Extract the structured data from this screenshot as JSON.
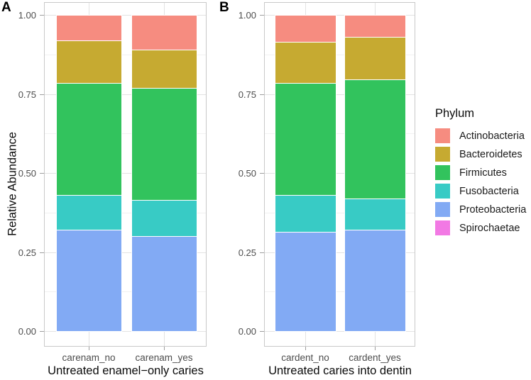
{
  "figure": {
    "background": "#ffffff",
    "axis_text_color": "#4d4d4d",
    "panel_border_color": "#c9c9c9",
    "grid_major_color": "#e3e3e3",
    "grid_minor_color": "#f1f1f1"
  },
  "chart_data": {
    "type": "bar",
    "stacked": true,
    "ylabel": "Relative Abundance",
    "ylim": [
      0,
      1
    ],
    "y_ticks": [
      0,
      0.25,
      0.5,
      0.75,
      1.0
    ],
    "y_tick_labels": [
      "0.00",
      "0.25",
      "0.50",
      "0.75",
      "1.00"
    ],
    "y_minor_ticks": [
      0.125,
      0.375,
      0.625,
      0.875
    ],
    "grid": true,
    "legend_position": "right",
    "legend_title": "Phylum",
    "legend_items": [
      {
        "label": "Actinobacteria",
        "color": "#f68c80"
      },
      {
        "label": "Bacteroidetes",
        "color": "#c6aa31"
      },
      {
        "label": "Firmicutes",
        "color": "#32c35d"
      },
      {
        "label": "Fusobacteria",
        "color": "#38cbc5"
      },
      {
        "label": "Proteobacteria",
        "color": "#82aaf4"
      },
      {
        "label": "Spirochaetae",
        "color": "#f279e4"
      }
    ],
    "stack_order_top_to_bottom": [
      "Actinobacteria",
      "Bacteroidetes",
      "Firmicutes",
      "Fusobacteria",
      "Proteobacteria",
      "Spirochaetae"
    ],
    "panels": [
      {
        "label": "A",
        "xlabel": "Untreated enamel−only caries",
        "categories": [
          "carenam_no",
          "carenam_yes"
        ],
        "series": [
          {
            "name": "Actinobacteria",
            "values": [
              0.08,
              0.11
            ]
          },
          {
            "name": "Bacteroidetes",
            "values": [
              0.135,
              0.12
            ]
          },
          {
            "name": "Firmicutes",
            "values": [
              0.355,
              0.355
            ]
          },
          {
            "name": "Fusobacteria",
            "values": [
              0.11,
              0.115
            ]
          },
          {
            "name": "Proteobacteria",
            "values": [
              0.32,
              0.3
            ]
          },
          {
            "name": "Spirochaetae",
            "values": [
              0.0,
              0.0
            ]
          }
        ]
      },
      {
        "label": "B",
        "xlabel": "Untreated caries into dentin",
        "categories": [
          "cardent_no",
          "cardent_yes"
        ],
        "series": [
          {
            "name": "Actinobacteria",
            "values": [
              0.085,
              0.07
            ]
          },
          {
            "name": "Bacteroidetes",
            "values": [
              0.13,
              0.135
            ]
          },
          {
            "name": "Firmicutes",
            "values": [
              0.355,
              0.375
            ]
          },
          {
            "name": "Fusobacteria",
            "values": [
              0.115,
              0.1
            ]
          },
          {
            "name": "Proteobacteria",
            "values": [
              0.315,
              0.32
            ]
          },
          {
            "name": "Spirochaetae",
            "values": [
              0.0,
              0.0
            ]
          }
        ]
      }
    ]
  }
}
